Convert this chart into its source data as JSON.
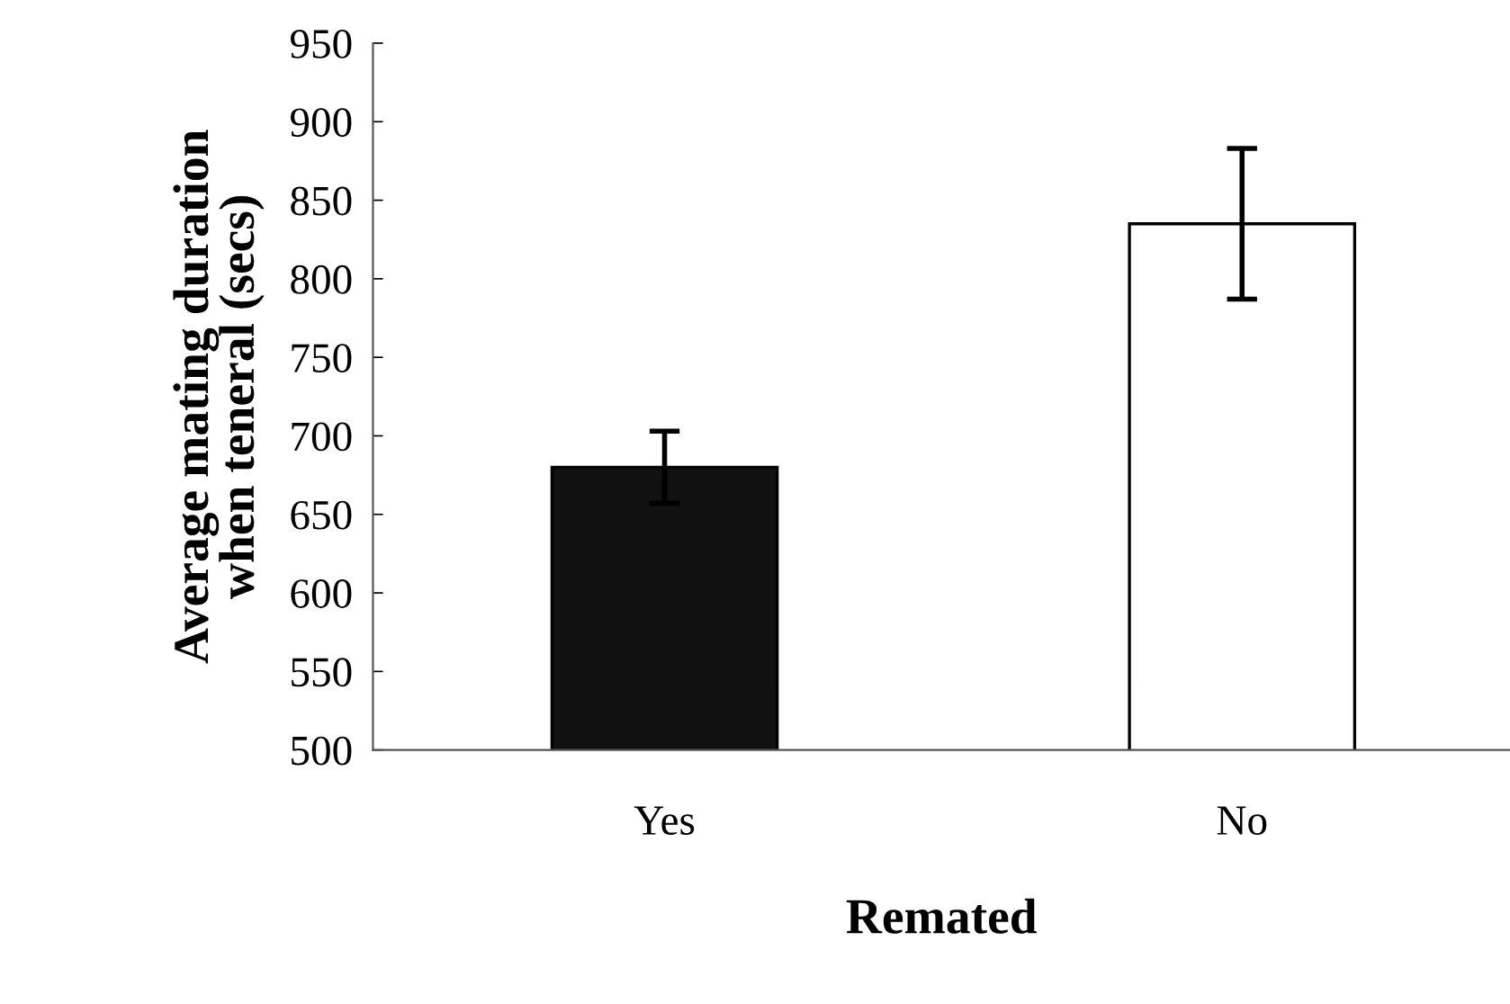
{
  "chart_data": {
    "type": "bar",
    "xlabel": "Remated",
    "ylabel": "Average mating duration\nwhen teneral (secs)",
    "categories": [
      "Yes",
      "No"
    ],
    "values": [
      680,
      835
    ],
    "errors": [
      23,
      48
    ],
    "colors": [
      "#111111",
      "#ffffff"
    ],
    "ylim": [
      500,
      950
    ],
    "yticks": [
      500,
      550,
      600,
      650,
      700,
      750,
      800,
      850,
      900,
      950
    ],
    "grid": false,
    "legend": false
  }
}
